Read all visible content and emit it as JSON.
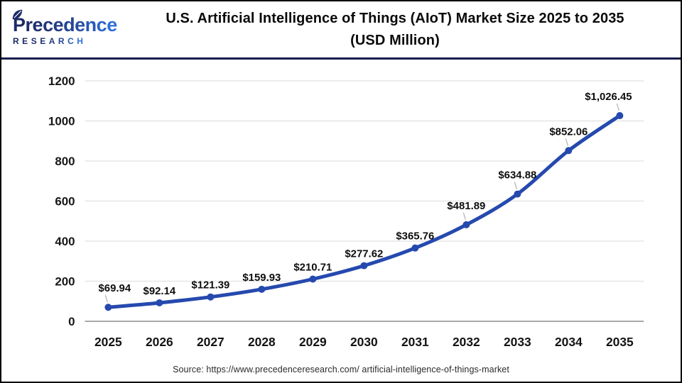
{
  "header": {
    "logo": {
      "name": "Precedence",
      "subtitle": "RESEARCH"
    },
    "title_line1": "U.S. Artificial Intelligence of Things (AIoT) Market Size 2025 to 2035",
    "title_line2": "(USD Million)"
  },
  "colors": {
    "logo_navy": "#1d2a66",
    "logo_blue": "#2f6fd9",
    "header_rule": "#191d4d",
    "line_blue": "#2549ae"
  },
  "chart_data": {
    "type": "line",
    "title": "U.S. Artificial Intelligence of Things (AIoT) Market Size 2025 to 2035 (USD Million)",
    "xlabel": "",
    "ylabel": "",
    "categories": [
      "2025",
      "2026",
      "2027",
      "2028",
      "2029",
      "2030",
      "2031",
      "2032",
      "2033",
      "2034",
      "2035"
    ],
    "series": [
      {
        "name": "U.S. AIoT market size (USD Million)",
        "values": [
          69.94,
          92.14,
          121.39,
          159.93,
          210.71,
          277.62,
          365.76,
          481.89,
          634.88,
          852.06,
          1026.45
        ]
      }
    ],
    "point_labels": [
      "$69.94",
      "$92.14",
      "$121.39",
      "$159.93",
      "$210.71",
      "$277.62",
      "$365.76",
      "$481.89",
      "$634.88",
      "$852.06",
      "$1,026.45"
    ],
    "ylim": [
      0,
      1200
    ],
    "yticks": [
      0,
      200,
      400,
      600,
      800,
      1000,
      1200
    ],
    "grid": true,
    "legend": "none",
    "line_color": "#2549ae",
    "marker": "circle",
    "grid_color": "#e6e6e6",
    "axis_color": "#a8a8a8",
    "leader_color": "#b0b0b0",
    "label_leader_indices": [
      0,
      7,
      8,
      9,
      10
    ]
  },
  "footer": {
    "source": "Source: https://www.precedenceresearch.com/ artificial-intelligence-of-things-market"
  }
}
